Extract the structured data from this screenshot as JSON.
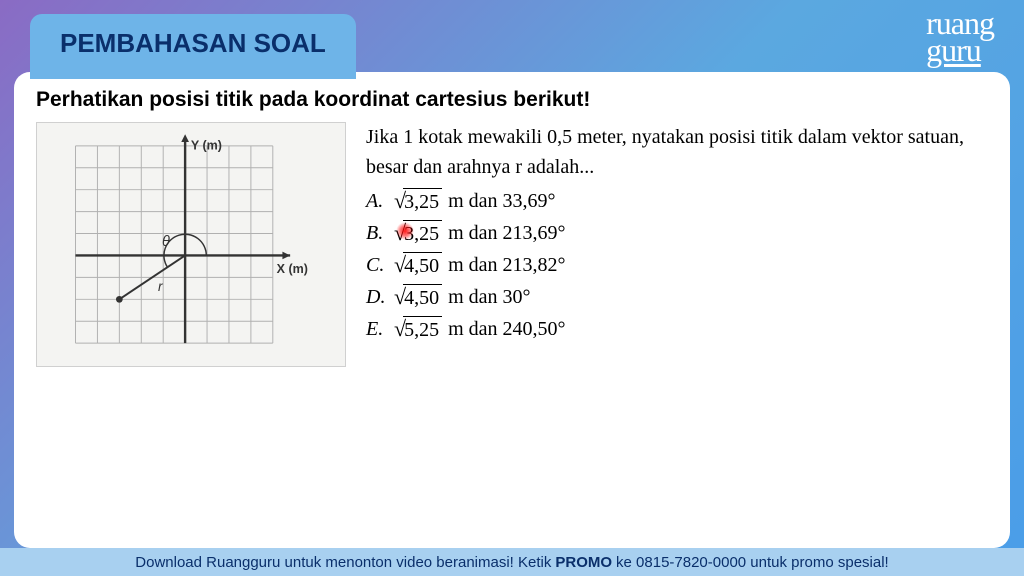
{
  "header": {
    "tab_title": "PEMBAHASAN SOAL",
    "logo_top": "ruang",
    "logo_bottom": "guru"
  },
  "content": {
    "instruction": "Perhatikan posisi titik pada koordinat cartesius berikut!",
    "question_text": "Jika 1 kotak mewakili 0,5 meter, nyatakan posisi titik dalam vektor satuan, besar dan arahnya r adalah...",
    "options": [
      {
        "letter": "A.",
        "sqrt_val": "3,25",
        "unit": "m dan",
        "angle": "33,69°"
      },
      {
        "letter": "B.",
        "sqrt_val": "3,25",
        "unit": "m dan",
        "angle": "213,69°"
      },
      {
        "letter": "C.",
        "sqrt_val": "4,50",
        "unit": "m dan",
        "angle": "213,82°"
      },
      {
        "letter": "D.",
        "sqrt_val": "4,50",
        "unit": "m dan",
        "angle": "30°"
      },
      {
        "letter": "E.",
        "sqrt_val": "5,25",
        "unit": "m dan",
        "angle": "240,50°"
      }
    ]
  },
  "graph": {
    "grid_size": 9,
    "origin_col": 5,
    "origin_row": 5,
    "point_col": 2,
    "point_row": 7,
    "y_label": "Y (m)",
    "x_label": "X (m)",
    "theta_label": "θ",
    "r_label": "r",
    "grid_color": "#b0b0b0",
    "axis_color": "#333333",
    "line_color": "#333333",
    "bg_color": "#f4f4f2"
  },
  "footer": {
    "text_pre": "Download Ruangguru untuk menonton video beranimasi! Ketik ",
    "bold": "PROMO",
    "text_post": " ke 0815-7820-0000 untuk promo spesial!"
  },
  "colors": {
    "tab_bg": "#6eb4e8",
    "tab_text": "#0a2f6b",
    "content_bg": "#ffffff",
    "footer_bg": "#a8d0f0"
  }
}
